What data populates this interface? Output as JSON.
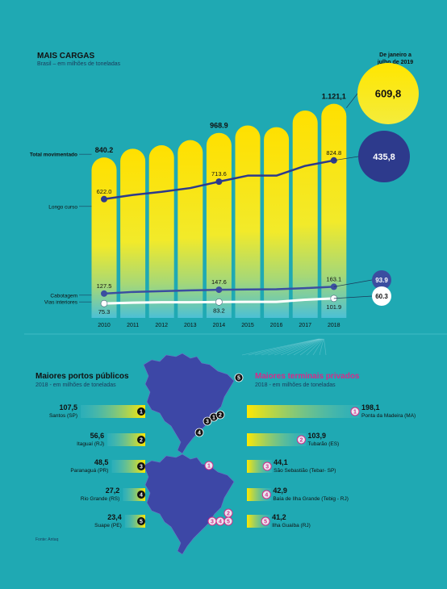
{
  "header": {
    "title": "MAIS CARGAS",
    "subtitle": "Brasil – em milhões de toneladas",
    "ytd_label_line1": "De janeiro a",
    "ytd_label_line2": "julho de 2019"
  },
  "colors": {
    "background": "#1fa9b3",
    "bar_top": "#ffe000",
    "longo_curso": "#2d3a8c",
    "cabotagem": "#3b4ea0",
    "vias_interiores": "#ffffff",
    "accent_magenta": "#d62b8a",
    "map_fill": "#3d47a6"
  },
  "chart_data": {
    "type": "bar",
    "title": "MAIS CARGAS",
    "subtitle": "Brasil – em milhões de toneladas",
    "categories": [
      "2010",
      "2011",
      "2012",
      "2013",
      "2014",
      "2015",
      "2016",
      "2017",
      "2018"
    ],
    "series": [
      {
        "name": "Total movimentado",
        "type": "bar",
        "values": [
          840.2,
          886.0,
          904.0,
          931.0,
          968.9,
          1008.0,
          999.0,
          1086.0,
          1121.1
        ],
        "labels": [
          "840.2",
          "",
          "",
          "",
          "968.9",
          "",
          "",
          "",
          "1.121,1"
        ]
      },
      {
        "name": "Longo curso",
        "type": "line",
        "values": [
          622.0,
          644.0,
          660.0,
          680.0,
          713.6,
          745.0,
          745.0,
          796.0,
          824.8
        ],
        "labels": [
          "622.0",
          "",
          "",
          "",
          "713.6",
          "",
          "",
          "",
          "824.8"
        ]
      },
      {
        "name": "Cabotagem",
        "type": "line",
        "values": [
          127.5,
          136.0,
          140.0,
          144.0,
          147.6,
          149.0,
          150.0,
          156.0,
          163.1
        ],
        "labels": [
          "127.5",
          "",
          "",
          "",
          "147.6",
          "",
          "",
          "",
          "163.1"
        ]
      },
      {
        "name": "Vias interiores",
        "type": "line",
        "values": [
          75.3,
          80.0,
          82.0,
          82.0,
          83.2,
          84.0,
          84.0,
          95.0,
          101.9
        ],
        "labels": [
          "75.3",
          "",
          "",
          "",
          "83.2",
          "",
          "",
          "",
          "101.9"
        ]
      }
    ],
    "ytd_2019": [
      {
        "name": "Total movimentado",
        "value": "609,8"
      },
      {
        "name": "Longo curso",
        "value": "435,8"
      },
      {
        "name": "Cabotagem",
        "value": "93.9"
      },
      {
        "name": "Vias interiores",
        "value": "60.3"
      }
    ],
    "ylim": [
      0,
      1200
    ],
    "grid": false,
    "legend": "left"
  },
  "ports": {
    "public_title": "Maiores portos públicos",
    "public_subtitle": "2018 - em milhões de toneladas",
    "public": [
      {
        "rank": "1",
        "name": "Santos (SP)",
        "value": "107,5"
      },
      {
        "rank": "2",
        "name": "Itaguaí (RJ)",
        "value": "56,6"
      },
      {
        "rank": "3",
        "name": "Paranaguá (PR)",
        "value": "48,5"
      },
      {
        "rank": "4",
        "name": "Rio Grande (RS)",
        "value": "27,2"
      },
      {
        "rank": "5",
        "name": "Suape (PE)",
        "value": "23,4"
      }
    ],
    "private_title": "Maiores terminais privados",
    "private_subtitle": "2018 - em milhões de toneladas",
    "private": [
      {
        "rank": "1",
        "name": "Ponta da Madeira (MA)",
        "value": "198,1"
      },
      {
        "rank": "2",
        "name": "Tubarão (ES)",
        "value": "103,9"
      },
      {
        "rank": "3",
        "name": "São Sebastião (Tebar- SP)",
        "value": "44,1"
      },
      {
        "rank": "4",
        "name": "Baía de Ilha Grande (Tebig - RJ)",
        "value": "42,9"
      },
      {
        "rank": "5",
        "name": "Ilha Guaíba (RJ)",
        "value": "41,2"
      }
    ],
    "public_values_num": [
      107.5,
      56.6,
      48.5,
      27.2,
      23.4
    ],
    "private_values_num": [
      198.1,
      103.9,
      44.1,
      42.9,
      41.2
    ]
  },
  "source": "Fonte: Antaq"
}
